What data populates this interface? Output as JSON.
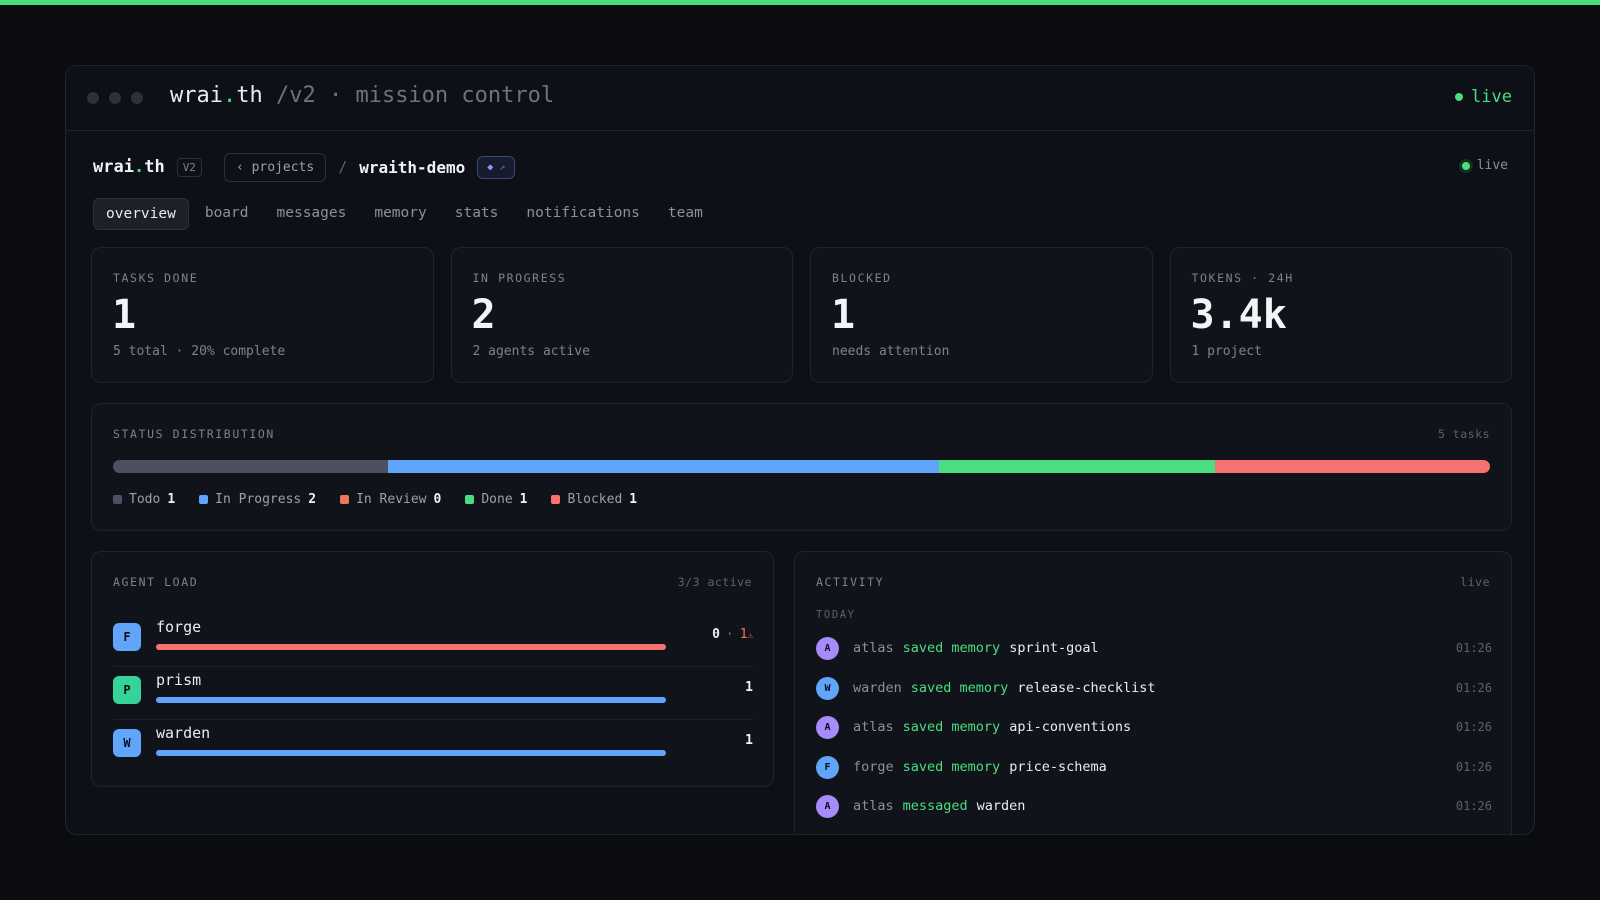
{
  "window": {
    "title_parts": [
      "wrai",
      ".",
      "th"
    ],
    "path": "/v2 · mission control",
    "status": "live"
  },
  "header": {
    "brand_parts": [
      "wrai",
      ".",
      "th"
    ],
    "version": "V2",
    "back": "projects",
    "separator": "/",
    "project": "wraith-demo",
    "status": "live"
  },
  "tabs": {
    "items": [
      "overview",
      "board",
      "messages",
      "memory",
      "stats",
      "notifications",
      "team"
    ],
    "active": 0
  },
  "stats": [
    {
      "label": "TASKS DONE",
      "value": "1",
      "note": "5 total · 20% complete"
    },
    {
      "label": "IN PROGRESS",
      "value": "2",
      "note": "2 agents active"
    },
    {
      "label": "BLOCKED",
      "value": "1",
      "note": "needs attention"
    },
    {
      "label": "TOKENS · 24H",
      "value": "3.4k",
      "note": "1 project"
    }
  ],
  "status_distribution": {
    "title": "STATUS DISTRIBUTION",
    "summary": "5 tasks",
    "items": [
      {
        "name": "Todo",
        "count": 1,
        "color": "#4b5160"
      },
      {
        "name": "In Progress",
        "count": 2,
        "color": "#60a5fa"
      },
      {
        "name": "In Review",
        "count": 0,
        "color": "#f0765a"
      },
      {
        "name": "Done",
        "count": 1,
        "color": "#4ade80"
      },
      {
        "name": "Blocked",
        "count": 1,
        "color": "#f87171"
      }
    ]
  },
  "agent_load": {
    "title": "AGENT LOAD",
    "summary": "3/3 active",
    "separator": "·",
    "agents": [
      {
        "initial": "F",
        "name": "forge",
        "avatar_color": "#60a5fa",
        "bar_color": "#f87171",
        "load": 0,
        "blocked": 1
      },
      {
        "initial": "P",
        "name": "prism",
        "avatar_color": "#34d399",
        "bar_color": "#60a5fa",
        "load": 1
      },
      {
        "initial": "W",
        "name": "warden",
        "avatar_color": "#60a5fa",
        "bar_color": "#60a5fa",
        "load": 1
      }
    ]
  },
  "activity": {
    "title": "ACTIVITY",
    "summary": "live",
    "group": "TODAY",
    "items": [
      {
        "initial": "A",
        "color": "#a78bfa",
        "actor": "atlas",
        "action": "saved memory",
        "target": "sprint-goal",
        "time": "01:26"
      },
      {
        "initial": "W",
        "color": "#60a5fa",
        "actor": "warden",
        "action": "saved memory",
        "target": "release-checklist",
        "time": "01:26"
      },
      {
        "initial": "A",
        "color": "#a78bfa",
        "actor": "atlas",
        "action": "saved memory",
        "target": "api-conventions",
        "time": "01:26"
      },
      {
        "initial": "F",
        "color": "#60a5fa",
        "actor": "forge",
        "action": "saved memory",
        "target": "price-schema",
        "time": "01:26"
      },
      {
        "initial": "A",
        "color": "#a78bfa",
        "actor": "atlas",
        "action": "messaged",
        "target": "warden",
        "time": "01:26"
      }
    ]
  }
}
